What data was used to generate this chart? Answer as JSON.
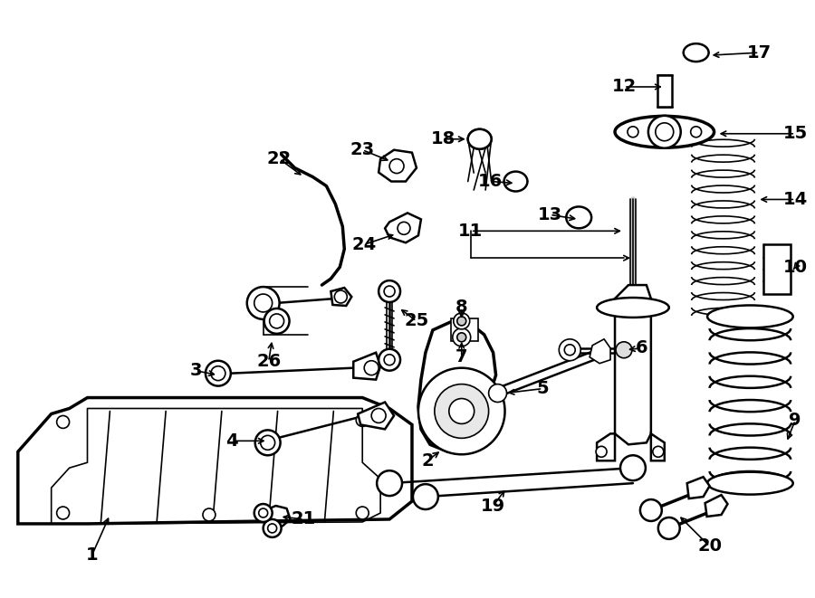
{
  "bg_color": "#ffffff",
  "line_color": "#000000",
  "fig_width": 9.0,
  "fig_height": 6.61,
  "font_size": 14
}
